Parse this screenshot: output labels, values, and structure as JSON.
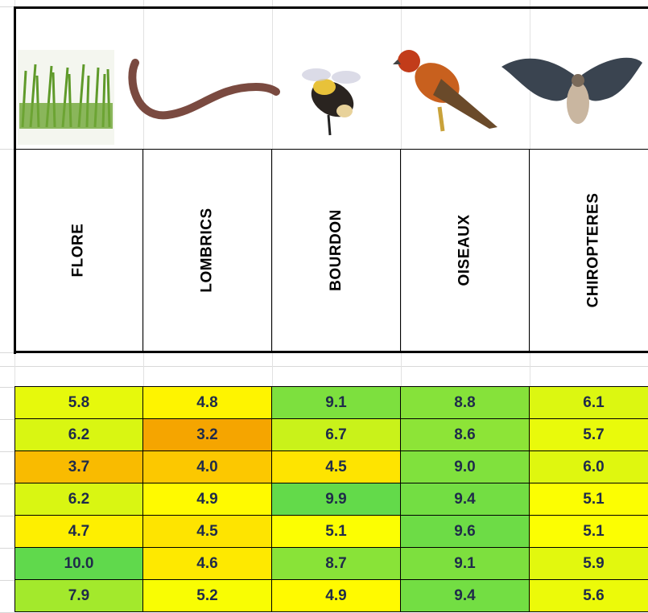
{
  "table": {
    "headers": [
      "FLORE",
      "LOMBRICS",
      "BOURDON",
      "OISEAUX",
      "CHIROPTERES"
    ],
    "rows": [
      [
        "5.8",
        "4.8",
        "9.1",
        "8.8",
        "6.1"
      ],
      [
        "6.2",
        "3.2",
        "6.7",
        "8.6",
        "5.7"
      ],
      [
        "3.7",
        "4.0",
        "4.5",
        "9.0",
        "6.0"
      ],
      [
        "6.2",
        "4.9",
        "9.9",
        "9.4",
        "5.1"
      ],
      [
        "4.7",
        "4.5",
        "5.1",
        "9.6",
        "5.1"
      ],
      [
        "10.0",
        "4.6",
        "8.7",
        "9.1",
        "5.9"
      ],
      [
        "7.9",
        "5.2",
        "4.9",
        "9.4",
        "5.6"
      ]
    ]
  }
}
